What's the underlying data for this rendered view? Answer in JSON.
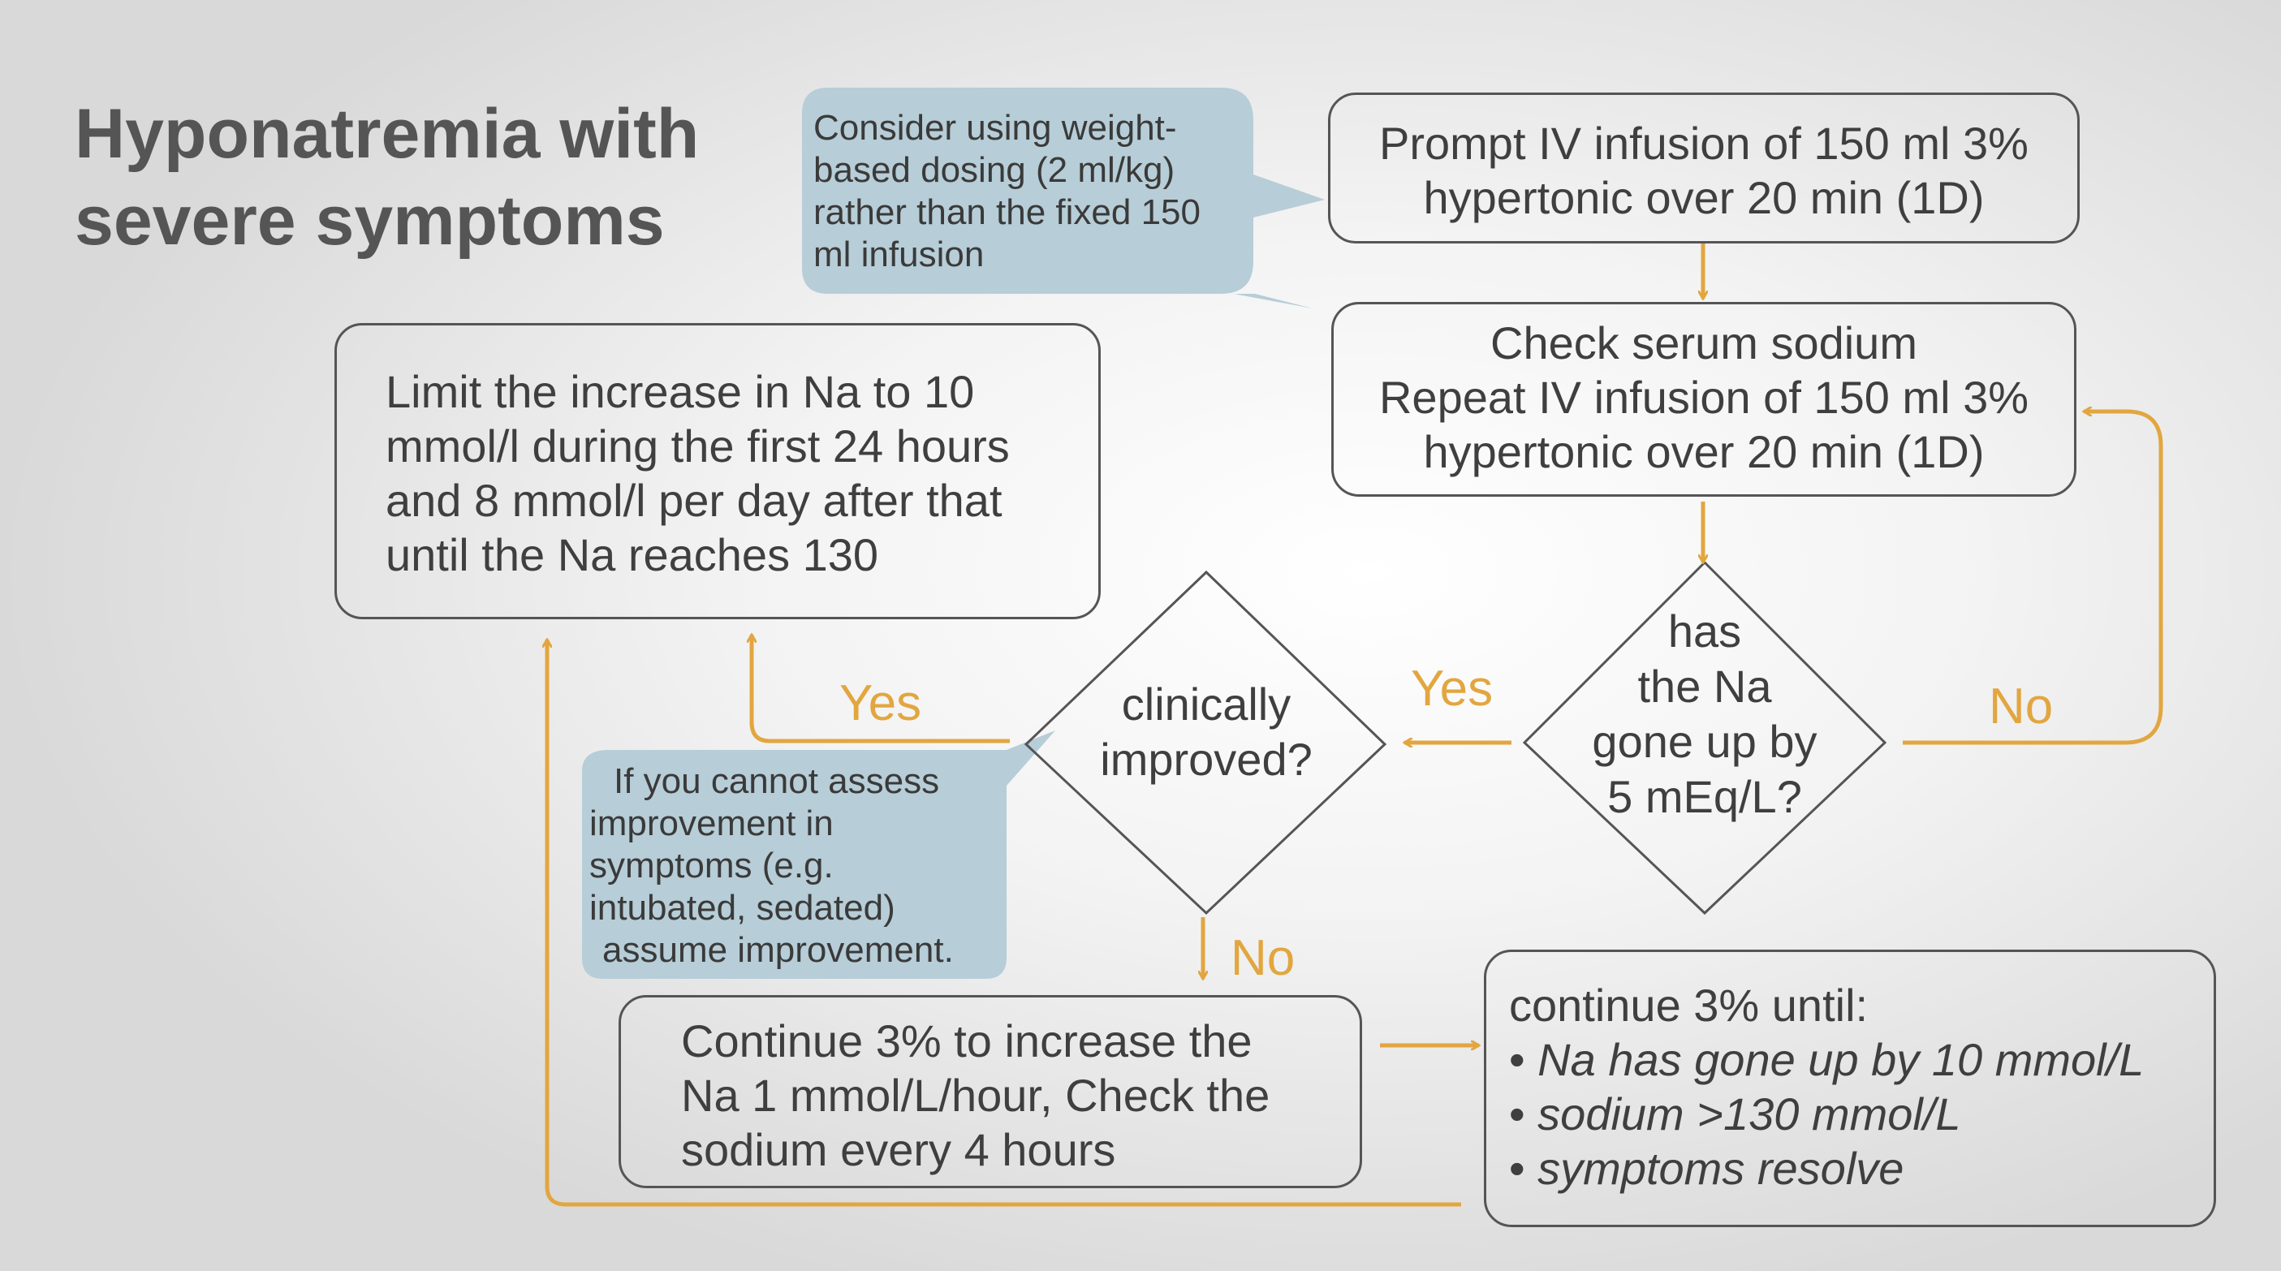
{
  "title": [
    "Hyponatremia with",
    "severe symptoms"
  ],
  "callout_dosing": [
    "Consider using weight-",
    "based dosing (2 ml/kg)",
    "rather than the fixed 150",
    "ml infusion"
  ],
  "box_prompt": [
    "Prompt IV infusion of 150 ml 3%",
    "hypertonic over 20 min (1D)"
  ],
  "box_check": [
    "Check serum sodium",
    "Repeat IV infusion of 150 ml 3%",
    "hypertonic over 20 min (1D)"
  ],
  "box_limit": [
    "Limit the increase in Na to 10",
    "mmol/l during the first 24 hours",
    "and 8 mmol/l per day after that",
    "until the Na reaches 130"
  ],
  "diamond_na": [
    "has",
    "the Na",
    "gone up by",
    "5 mEq/L?"
  ],
  "diamond_improved": [
    "clinically",
    "improved?"
  ],
  "callout_assess": [
    "If you cannot assess",
    "improvement in",
    "symptoms (e.g.",
    "intubated, sedated)",
    "assume improvement."
  ],
  "box_continue": [
    "Continue 3% to increase the",
    "Na 1 mmol/L/hour, Check the",
    "sodium every 4 hours"
  ],
  "box_until": {
    "heading": "continue 3% until:",
    "bullets": [
      "Na has gone up by 10 mmol/L",
      "sodium >130 mmol/L",
      "symptoms resolve"
    ]
  },
  "labels": {
    "yes_na": "Yes",
    "no_na": "No",
    "yes_improved": "Yes",
    "no_improved": "No"
  },
  "colors": {
    "arrow": "#e2a640",
    "callout_fill": "#b7cdd7",
    "box_border": "#555555",
    "text": "#3f3f3f"
  }
}
